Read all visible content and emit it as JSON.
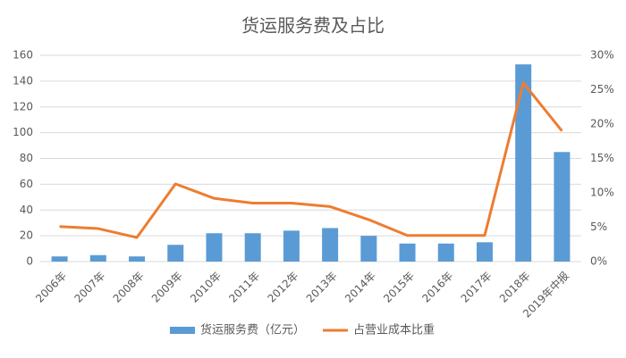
{
  "chart_data": {
    "type": "bar",
    "title": "货运服务费及占比",
    "categories": [
      "2006年",
      "2007年",
      "2008年",
      "2009年",
      "2010年",
      "2011年",
      "2012年",
      "2013年",
      "2014年",
      "2015年",
      "2016年",
      "2017年",
      "2018年",
      "2019年中报"
    ],
    "series": [
      {
        "name": "货运服务费（亿元）",
        "type": "bar",
        "color": "#5b9bd5",
        "values": [
          4,
          5,
          4,
          13,
          22,
          22,
          24,
          26,
          20,
          14,
          14,
          15,
          153,
          85
        ]
      },
      {
        "name": "占营业成本比重",
        "type": "line",
        "axis": "y2",
        "color": "#ed7d31",
        "values": [
          5.1,
          4.8,
          3.5,
          11.3,
          9.2,
          8.5,
          8.5,
          8.0,
          6.1,
          3.8,
          3.8,
          3.8,
          26,
          19
        ]
      }
    ],
    "ylim": [
      0,
      160
    ],
    "yticks": [
      0,
      20,
      40,
      60,
      80,
      100,
      120,
      140,
      160
    ],
    "y2lim": [
      0,
      30
    ],
    "y2ticks": [
      {
        "value": 0,
        "label": "0%"
      },
      {
        "value": 5,
        "label": "5%"
      },
      {
        "value": 10,
        "label": "10%"
      },
      {
        "value": 15,
        "label": "15%"
      },
      {
        "value": 20,
        "label": "20%"
      },
      {
        "value": 25,
        "label": "25%"
      },
      {
        "value": 30,
        "label": "30%"
      }
    ],
    "grid": true,
    "legend": "bottom"
  }
}
